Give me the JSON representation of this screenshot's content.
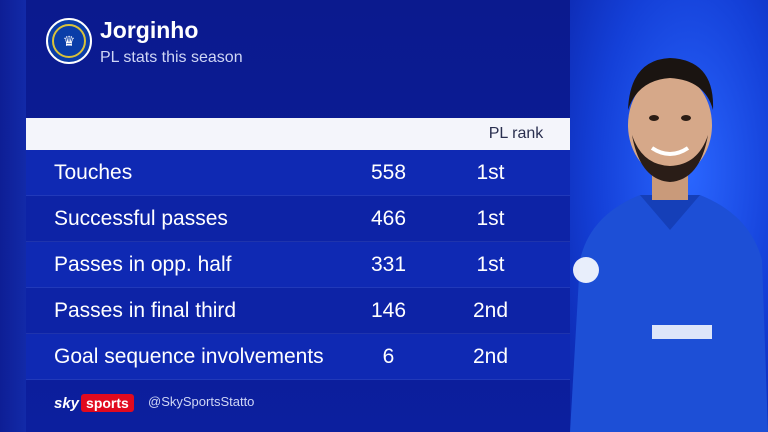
{
  "header": {
    "player_name": "Jorginho",
    "subtitle": "PL stats this season",
    "club_badge": "chelsea-crest-icon"
  },
  "table": {
    "rank_column_header": "PL rank",
    "rows": [
      {
        "label": "Touches",
        "value": "558",
        "rank": "1st"
      },
      {
        "label": "Successful passes",
        "value": "466",
        "rank": "1st"
      },
      {
        "label": "Passes in opp. half",
        "value": "331",
        "rank": "1st"
      },
      {
        "label": "Passes in final third",
        "value": "146",
        "rank": "2nd"
      },
      {
        "label": "Goal sequence involvements",
        "value": "6",
        "rank": "2nd"
      }
    ]
  },
  "footer": {
    "brand_sky": "sky",
    "brand_sports": "sports",
    "handle": "@SkySportsStatto"
  },
  "colors": {
    "panel_bg": "#0b1a8e",
    "row_bg": "#0f29b3",
    "header_bar": "#f4f5fb",
    "brand_red": "#e10a1e"
  }
}
